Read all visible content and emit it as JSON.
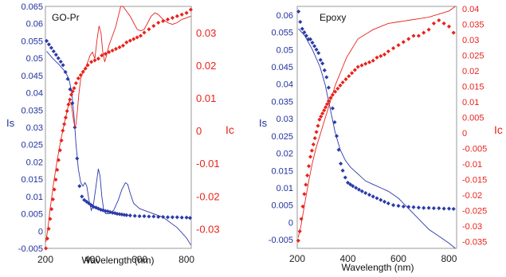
{
  "chart_data": [
    {
      "type": "scatter",
      "title": "GO-Pr",
      "xlabel": "Wavelength (nm)",
      "ylabel_left": "Is",
      "ylabel_right": "Ic",
      "xlim": [
        200,
        820
      ],
      "ylim_left": [
        -0.005,
        0.065
      ],
      "ylim_right": [
        -0.036,
        0.038
      ],
      "x_ticks": [
        "200",
        "400",
        "600",
        "800"
      ],
      "left_ticks": [
        "-0.005",
        "0",
        "0.005",
        "0.01",
        "0.015",
        "0.02",
        "0.025",
        "0.03",
        "0.035",
        "0.04",
        "0.045",
        "0.05",
        "0.055",
        "0.06",
        "0.065"
      ],
      "right_ticks": [
        "-0.03",
        "-0.02",
        "-0.01",
        "0",
        "0.01",
        "0.02",
        "0.03"
      ],
      "colors": {
        "is": "#2a3aa8",
        "ic": "#e8221b"
      },
      "series": [
        {
          "name": "Is",
          "kind": "points",
          "axis": "left",
          "x": [
            205,
            215,
            225,
            235,
            245,
            255,
            265,
            275,
            285,
            295,
            305,
            315,
            325,
            335,
            345,
            355,
            365,
            375,
            385,
            395,
            405,
            415,
            425,
            435,
            445,
            455,
            465,
            475,
            485,
            495,
            505,
            515,
            525,
            535,
            545,
            560,
            580,
            600,
            620,
            640,
            660,
            680,
            700,
            720,
            740,
            760,
            780,
            800,
            815
          ],
          "y": [
            0.055,
            0.054,
            0.053,
            0.052,
            0.051,
            0.05,
            0.049,
            0.048,
            0.046,
            0.044,
            0.041,
            0.037,
            0.03,
            0.021,
            0.013,
            0.01,
            0.009,
            0.0085,
            0.008,
            0.0075,
            0.007,
            0.0068,
            0.0065,
            0.0062,
            0.006,
            0.0058,
            0.0057,
            0.0055,
            0.0053,
            0.0052,
            0.005,
            0.0049,
            0.0048,
            0.0047,
            0.0046,
            0.0045,
            0.0044,
            0.0043,
            0.0043,
            0.0042,
            0.0042,
            0.0041,
            0.0041,
            0.004,
            0.004,
            0.004,
            0.0039,
            0.0039,
            0.0038
          ]
        },
        {
          "name": "Is",
          "kind": "line",
          "axis": "left",
          "x": [
            205,
            230,
            260,
            285,
            300,
            312,
            322,
            330,
            340,
            350,
            360,
            368,
            376,
            385,
            395,
            405,
            415,
            425,
            432,
            440,
            448,
            456,
            470,
            490,
            510,
            525,
            540,
            550,
            560,
            575,
            600,
            640,
            700,
            760,
            800,
            818
          ],
          "y": [
            0.052,
            0.05,
            0.048,
            0.046,
            0.044,
            0.04,
            0.033,
            0.025,
            0.018,
            0.014,
            0.013,
            0.014,
            0.013,
            0.009,
            0.006,
            0.008,
            0.013,
            0.018,
            0.016,
            0.01,
            0.006,
            0.005,
            0.005,
            0.006,
            0.009,
            0.012,
            0.014,
            0.0135,
            0.011,
            0.008,
            0.0065,
            0.0055,
            0.004,
            0.001,
            -0.002,
            -0.004
          ]
        },
        {
          "name": "Ic",
          "kind": "points",
          "axis": "right",
          "x": [
            202,
            208,
            214,
            220,
            226,
            232,
            238,
            244,
            250,
            256,
            262,
            268,
            274,
            280,
            286,
            292,
            298,
            304,
            310,
            316,
            322,
            330,
            340,
            350,
            360,
            370,
            380,
            395,
            410,
            425,
            440,
            455,
            470,
            485,
            500,
            515,
            530,
            545,
            560,
            575,
            590,
            605,
            620,
            640,
            660,
            680,
            700,
            720,
            740,
            760,
            780,
            800,
            818
          ],
          "y": [
            -0.036,
            -0.033,
            -0.03,
            -0.027,
            -0.024,
            -0.021,
            -0.018,
            -0.015,
            -0.012,
            -0.009,
            -0.006,
            -0.003,
            0,
            0.002,
            0.004,
            0.006,
            0.008,
            0.0095,
            0.011,
            0.012,
            0.013,
            0.0145,
            0.016,
            0.017,
            0.018,
            0.019,
            0.02,
            0.021,
            0.0215,
            0.022,
            0.023,
            0.0235,
            0.024,
            0.0245,
            0.025,
            0.0255,
            0.026,
            0.027,
            0.0275,
            0.028,
            0.0285,
            0.029,
            0.03,
            0.031,
            0.032,
            0.033,
            0.0335,
            0.034,
            0.0345,
            0.035,
            0.0355,
            0.036,
            0.037
          ]
        },
        {
          "name": "Ic",
          "kind": "line",
          "axis": "right",
          "x": [
            202,
            210,
            220,
            235,
            250,
            265,
            280,
            292,
            302,
            310,
            318,
            325,
            330,
            336,
            342,
            350,
            360,
            370,
            380,
            390,
            400,
            410,
            420,
            428,
            436,
            444,
            452,
            460,
            470,
            480,
            490,
            500,
            510,
            520,
            530,
            540,
            550,
            560,
            575,
            590,
            605,
            620,
            635,
            650,
            665,
            680,
            700,
            720,
            740,
            760,
            780,
            800,
            818
          ],
          "y": [
            -0.034,
            -0.03,
            -0.024,
            -0.016,
            -0.009,
            -0.003,
            0.002,
            0.006,
            0.009,
            0.008,
            0.004,
            0.001,
            0.002,
            0.006,
            0.011,
            0.016,
            0.018,
            0.019,
            0.021,
            0.023,
            0.024,
            0.022,
            0.028,
            0.032,
            0.03,
            0.024,
            0.021,
            0.023,
            0.026,
            0.028,
            0.03,
            0.032,
            0.035,
            0.038,
            0.038,
            0.037,
            0.036,
            0.035,
            0.033,
            0.031,
            0.0305,
            0.031,
            0.033,
            0.035,
            0.036,
            0.0355,
            0.034,
            0.033,
            0.0325,
            0.033,
            0.034,
            0.0345,
            0.035
          ]
        }
      ]
    },
    {
      "type": "scatter",
      "title": "Epoxy",
      "xlabel": "Wavelength (nm)",
      "ylabel_left": "Is",
      "ylabel_right": "Ic",
      "xlim": [
        200,
        830
      ],
      "ylim_left": [
        -0.0075,
        0.0625
      ],
      "ylim_right": [
        -0.0375,
        0.0405
      ],
      "x_ticks": [
        "200",
        "400",
        "600",
        "800"
      ],
      "left_ticks": [
        "-0.005",
        "0",
        "0.005",
        "0.01",
        "0.015",
        "0.02",
        "0.025",
        "0.03",
        "0.035",
        "0.04",
        "0.045",
        "0.05",
        "0.055",
        "0.06"
      ],
      "right_ticks": [
        "-0.035",
        "-0.03",
        "-0.025",
        "-0.02",
        "-0.015",
        "-0.01",
        "-0.005",
        "0",
        "0.005",
        "0.01",
        "0.015",
        "0.02",
        "0.025",
        "0.03",
        "0.035",
        "0.04"
      ],
      "colors": {
        "is": "#2a3aa8",
        "ic": "#e8221b"
      },
      "series": [
        {
          "name": "Is",
          "kind": "points",
          "axis": "left",
          "x": [
            205,
            212,
            220,
            228,
            236,
            244,
            252,
            260,
            268,
            276,
            284,
            292,
            300,
            308,
            316,
            324,
            332,
            340,
            348,
            356,
            364,
            372,
            380,
            390,
            400,
            410,
            420,
            432,
            444,
            456,
            470,
            485,
            500,
            515,
            530,
            545,
            560,
            580,
            600,
            620,
            640,
            660,
            680,
            700,
            720,
            740,
            760,
            780,
            800,
            818
          ],
          "y": [
            0.061,
            0.058,
            0.056,
            0.055,
            0.054,
            0.053,
            0.053,
            0.052,
            0.051,
            0.05,
            0.049,
            0.047,
            0.046,
            0.044,
            0.042,
            0.039,
            0.036,
            0.033,
            0.029,
            0.025,
            0.021,
            0.017,
            0.015,
            0.013,
            0.0115,
            0.011,
            0.0105,
            0.01,
            0.0095,
            0.009,
            0.0085,
            0.008,
            0.0075,
            0.007,
            0.0065,
            0.006,
            0.0055,
            0.005,
            0.0048,
            0.0046,
            0.0045,
            0.0044,
            0.0043,
            0.0042,
            0.0042,
            0.0041,
            0.0041,
            0.004,
            0.004,
            0.0039
          ]
        },
        {
          "name": "Is",
          "kind": "line",
          "axis": "left",
          "x": [
            205,
            230,
            260,
            290,
            310,
            330,
            350,
            370,
            390,
            410,
            440,
            470,
            500,
            530,
            560,
            600,
            640,
            680,
            720,
            760,
            800,
            825
          ],
          "y": [
            0.056,
            0.054,
            0.05,
            0.045,
            0.04,
            0.033,
            0.026,
            0.021,
            0.018,
            0.016,
            0.014,
            0.012,
            0.011,
            0.01,
            0.009,
            0.007,
            0.004,
            0.001,
            -0.002,
            -0.004,
            -0.006,
            -0.0075
          ]
        },
        {
          "name": "Ic",
          "kind": "points",
          "axis": "right",
          "x": [
            204,
            210,
            216,
            222,
            228,
            234,
            240,
            246,
            252,
            258,
            264,
            270,
            276,
            282,
            288,
            294,
            300,
            306,
            312,
            318,
            324,
            332,
            340,
            350,
            360,
            370,
            380,
            392,
            404,
            416,
            428,
            440,
            455,
            470,
            485,
            500,
            515,
            530,
            545,
            560,
            580,
            600,
            620,
            640,
            660,
            680,
            700,
            720,
            740,
            760,
            780,
            800,
            818
          ],
          "y": [
            -0.035,
            -0.032,
            -0.028,
            -0.024,
            -0.02,
            -0.017,
            -0.014,
            -0.011,
            -0.008,
            -0.006,
            -0.004,
            -0.002,
            0,
            0.002,
            0.004,
            0.005,
            0.006,
            0.007,
            0.008,
            0.009,
            0.01,
            0.011,
            0.012,
            0.013,
            0.014,
            0.015,
            0.016,
            0.017,
            0.018,
            0.019,
            0.02,
            0.021,
            0.0215,
            0.022,
            0.0225,
            0.023,
            0.024,
            0.0245,
            0.025,
            0.026,
            0.027,
            0.028,
            0.029,
            0.03,
            0.031,
            0.031,
            0.032,
            0.033,
            0.035,
            0.036,
            0.035,
            0.034,
            0.032
          ]
        },
        {
          "name": "Ic",
          "kind": "line",
          "axis": "right",
          "x": [
            204,
            215,
            230,
            245,
            260,
            275,
            290,
            305,
            320,
            335,
            350,
            365,
            380,
            395,
            410,
            425,
            440,
            460,
            480,
            500,
            530,
            560,
            600,
            640,
            680,
            720,
            760,
            800,
            825
          ],
          "y": [
            -0.034,
            -0.03,
            -0.023,
            -0.016,
            -0.01,
            -0.005,
            -0.001,
            0.003,
            0.007,
            0.011,
            0.015,
            0.018,
            0.021,
            0.024,
            0.026,
            0.028,
            0.03,
            0.031,
            0.032,
            0.033,
            0.034,
            0.035,
            0.0355,
            0.036,
            0.0365,
            0.037,
            0.038,
            0.039,
            0.0405
          ]
        }
      ]
    }
  ]
}
